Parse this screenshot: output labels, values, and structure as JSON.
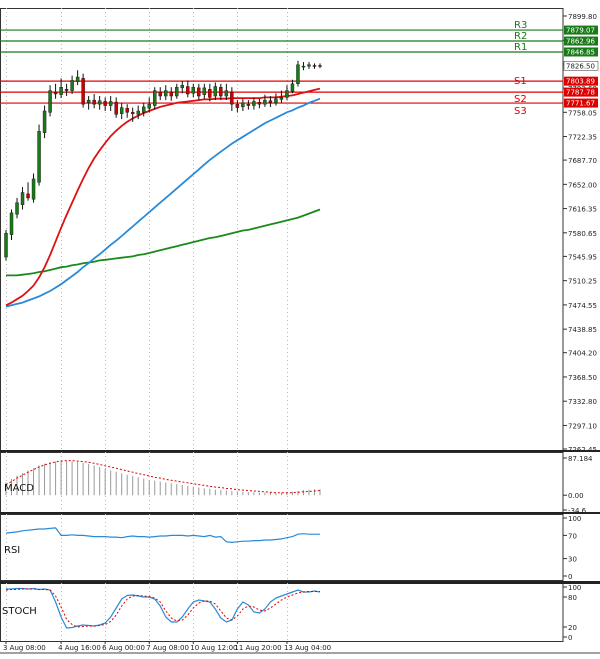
{
  "chart_data": {
    "type": "candlestick",
    "price_ticks": [
      "7899.80",
      "7864.05",
      "7829.15",
      "7793.60",
      "7758.05",
      "7722.35",
      "7687.70",
      "7652.00",
      "7616.35",
      "7580.65",
      "7545.95",
      "7510.25",
      "7474.55",
      "7438.85",
      "7404.20",
      "7368.50",
      "7332.80",
      "7297.10",
      "7262.45"
    ],
    "time_labels": [
      "3 Aug 08:00",
      "4 Aug 16:00",
      "6 Aug 00:00",
      "7 Aug 08:00",
      "10 Aug 12:00",
      "11 Aug 20:00",
      "13 Aug 04:00"
    ],
    "current_price": "7826.50",
    "colors": {
      "up": "#1a7a1a",
      "down": "#cc0000",
      "resistance": "#1a7a1a",
      "support": "#dd0000",
      "sma20": "#dd1111",
      "sma50": "#2a8ad8",
      "sma200": "#1a8a1a",
      "macd_hist": "#999999",
      "macd_signal": "#dd0000",
      "rsi": "#2a8ad8",
      "stoch_k": "#2a8ad8",
      "stoch_d": "#dd0000"
    },
    "levels": [
      {
        "name": "R3",
        "value": 7879.07,
        "label": "7879.07",
        "type": "resistance"
      },
      {
        "name": "R2",
        "value": 7862.96,
        "label": "7862.96",
        "type": "resistance"
      },
      {
        "name": "R1",
        "value": 7846.85,
        "label": "7846.85",
        "type": "resistance"
      },
      {
        "name": "S1",
        "value": 7803.89,
        "label": "7803.89",
        "type": "support"
      },
      {
        "name": "S2",
        "value": 7787.78,
        "label": "7787.78",
        "type": "support"
      },
      {
        "name": "S3",
        "value": 7771.67,
        "label": "7771.67",
        "type": "support"
      }
    ],
    "candles": [
      [
        7545,
        7580,
        7540,
        7585
      ],
      [
        7578,
        7610,
        7570,
        7615
      ],
      [
        7608,
        7625,
        7602,
        7632
      ],
      [
        7622,
        7640,
        7615,
        7648
      ],
      [
        7638,
        7632,
        7628,
        7655
      ],
      [
        7630,
        7660,
        7625,
        7668
      ],
      [
        7655,
        7730,
        7650,
        7740
      ],
      [
        7728,
        7760,
        7720,
        7768
      ],
      [
        7758,
        7790,
        7752,
        7798
      ],
      [
        7788,
        7785,
        7778,
        7800
      ],
      [
        7784,
        7795,
        7779,
        7808
      ],
      [
        7792,
        7790,
        7782,
        7800
      ],
      [
        7790,
        7805,
        7785,
        7812
      ],
      [
        7803,
        7810,
        7798,
        7820
      ],
      [
        7808,
        7770,
        7765,
        7815
      ],
      [
        7772,
        7776,
        7762,
        7782
      ],
      [
        7776,
        7770,
        7764,
        7785
      ],
      [
        7770,
        7775,
        7762,
        7782
      ],
      [
        7774,
        7768,
        7760,
        7780
      ],
      [
        7768,
        7774,
        7760,
        7782
      ],
      [
        7773,
        7755,
        7750,
        7780
      ],
      [
        7756,
        7765,
        7748,
        7772
      ],
      [
        7764,
        7758,
        7750,
        7770
      ],
      [
        7758,
        7756,
        7744,
        7765
      ],
      [
        7755,
        7760,
        7748,
        7768
      ],
      [
        7758,
        7766,
        7752,
        7772
      ],
      [
        7764,
        7770,
        7758,
        7780
      ],
      [
        7768,
        7790,
        7762,
        7795
      ],
      [
        7788,
        7782,
        7776,
        7795
      ],
      [
        7782,
        7790,
        7776,
        7798
      ],
      [
        7788,
        7782,
        7775,
        7795
      ],
      [
        7782,
        7795,
        7778,
        7800
      ],
      [
        7794,
        7798,
        7786,
        7804
      ],
      [
        7796,
        7785,
        7780,
        7805
      ],
      [
        7786,
        7795,
        7780,
        7800
      ],
      [
        7794,
        7782,
        7776,
        7800
      ],
      [
        7784,
        7794,
        7778,
        7800
      ],
      [
        7792,
        7780,
        7774,
        7800
      ],
      [
        7782,
        7796,
        7776,
        7802
      ],
      [
        7795,
        7782,
        7776,
        7800
      ],
      [
        7782,
        7790,
        7776,
        7800
      ],
      [
        7788,
        7770,
        7760,
        7795
      ],
      [
        7770,
        7765,
        7758,
        7776
      ],
      [
        7766,
        7772,
        7760,
        7778
      ],
      [
        7770,
        7768,
        7762,
        7776
      ],
      [
        7768,
        7774,
        7762,
        7780
      ],
      [
        7773,
        7770,
        7764,
        7778
      ],
      [
        7770,
        7776,
        7766,
        7784
      ],
      [
        7775,
        7772,
        7766,
        7782
      ],
      [
        7772,
        7778,
        7768,
        7786
      ],
      [
        7777,
        7780,
        7772,
        7790
      ],
      [
        7780,
        7790,
        7776,
        7798
      ],
      [
        7789,
        7800,
        7786,
        7806
      ],
      [
        7800,
        7828,
        7796,
        7834
      ],
      [
        7826,
        7826,
        7820,
        7832
      ],
      [
        7826,
        7828,
        7822,
        7832
      ],
      [
        7827,
        7826,
        7822,
        7830
      ],
      [
        7826,
        7827,
        7823,
        7830
      ]
    ],
    "sma20": [
      7474,
      7478,
      7483,
      7488,
      7495,
      7503,
      7515,
      7530,
      7548,
      7568,
      7588,
      7607,
      7625,
      7643,
      7660,
      7676,
      7690,
      7702,
      7713,
      7723,
      7731,
      7738,
      7744,
      7749,
      7753,
      7757,
      7760,
      7763,
      7766,
      7768,
      7770,
      7772,
      7773,
      7774,
      7775,
      7776,
      7777,
      7777,
      7778,
      7778,
      7778,
      7779,
      7779,
      7779,
      7779,
      7779,
      7779,
      7780,
      7780,
      7780,
      7781,
      7782,
      7783,
      7785,
      7787,
      7789,
      7791,
      7793
    ],
    "sma50": [
      7472,
      7474,
      7476,
      7478,
      7481,
      7484,
      7487,
      7491,
      7495,
      7500,
      7505,
      7511,
      7517,
      7523,
      7530,
      7536,
      7543,
      7549,
      7556,
      7563,
      7569,
      7576,
      7583,
      7590,
      7597,
      7604,
      7611,
      7618,
      7625,
      7632,
      7639,
      7646,
      7653,
      7660,
      7667,
      7674,
      7681,
      7688,
      7694,
      7700,
      7706,
      7712,
      7717,
      7722,
      7727,
      7732,
      7737,
      7742,
      7746,
      7750,
      7754,
      7758,
      7761,
      7765,
      7768,
      7772,
      7775,
      7778
    ],
    "sma200": [
      7518,
      7518,
      7518,
      7519,
      7520,
      7521,
      7523,
      7524,
      7526,
      7528,
      7530,
      7531,
      7533,
      7534,
      7536,
      7537,
      7538,
      7540,
      7541,
      7542,
      7543,
      7544,
      7545,
      7546,
      7548,
      7549,
      7551,
      7553,
      7555,
      7557,
      7559,
      7561,
      7563,
      7565,
      7567,
      7569,
      7571,
      7573,
      7574,
      7576,
      7578,
      7580,
      7582,
      7584,
      7585,
      7587,
      7589,
      7591,
      7593,
      7595,
      7597,
      7599,
      7601,
      7603,
      7606,
      7609,
      7612,
      7615
    ],
    "macd": {
      "label": "MACD",
      "ticks": [
        "87.184",
        "0.00",
        "-34.6"
      ],
      "ymax": 87.184,
      "ymin": -34.6,
      "hist": [
        30,
        38,
        46,
        52,
        58,
        63,
        70,
        74,
        77,
        79,
        80,
        80,
        79,
        78,
        76,
        73,
        70,
        66,
        62,
        58,
        55,
        51,
        48,
        45,
        42,
        39,
        36,
        34,
        32,
        30,
        28,
        26,
        24,
        22,
        20,
        18,
        16,
        15,
        13,
        12,
        11,
        10,
        9,
        8,
        7,
        7,
        6,
        6,
        6,
        5,
        6,
        7,
        8,
        10,
        12,
        13,
        14,
        14
      ],
      "signal": [
        25,
        32,
        40,
        47,
        54,
        60,
        66,
        71,
        75,
        78,
        80,
        81,
        81,
        80,
        79,
        77,
        75,
        72,
        69,
        66,
        63,
        60,
        57,
        54,
        51,
        48,
        45,
        42,
        40,
        37,
        35,
        33,
        31,
        29,
        27,
        25,
        23,
        21,
        19,
        18,
        16,
        15,
        13,
        12,
        11,
        10,
        9,
        8,
        7,
        6,
        6,
        6,
        6,
        7,
        8,
        9,
        10,
        11
      ]
    },
    "rsi": {
      "label": "RSI",
      "ticks": [
        "100",
        "70",
        "30",
        "0"
      ],
      "values": [
        74,
        75,
        76,
        78,
        79,
        80,
        81,
        81,
        82,
        83,
        70,
        70,
        71,
        70,
        70,
        69,
        68,
        68,
        68,
        67,
        67,
        66,
        68,
        69,
        68,
        68,
        67,
        68,
        69,
        69,
        70,
        70,
        70,
        69,
        70,
        69,
        68,
        70,
        67,
        68,
        59,
        58,
        59,
        60,
        60,
        61,
        61,
        62,
        62,
        63,
        64,
        66,
        68,
        72,
        73,
        72,
        72,
        72
      ]
    },
    "stoch": {
      "label": "STOCH",
      "ticks": [
        "100",
        "80",
        "20",
        "0"
      ],
      "k": [
        96,
        96,
        97,
        97,
        96,
        97,
        95,
        96,
        94,
        70,
        40,
        18,
        19,
        22,
        24,
        23,
        22,
        24,
        28,
        40,
        58,
        76,
        83,
        84,
        82,
        80,
        80,
        76,
        62,
        40,
        30,
        30,
        40,
        56,
        70,
        74,
        72,
        70,
        56,
        38,
        30,
        34,
        56,
        70,
        64,
        50,
        48,
        56,
        70,
        78,
        82,
        86,
        90,
        94,
        90,
        90,
        92,
        90
      ],
      "d": [
        94,
        95,
        95,
        96,
        96,
        96,
        95,
        95,
        94,
        82,
        60,
        35,
        25,
        20,
        21,
        22,
        22,
        23,
        25,
        31,
        44,
        62,
        76,
        82,
        83,
        82,
        81,
        78,
        70,
        52,
        38,
        32,
        34,
        44,
        58,
        68,
        72,
        72,
        66,
        52,
        38,
        34,
        42,
        56,
        62,
        60,
        54,
        52,
        58,
        66,
        74,
        80,
        84,
        88,
        90,
        91,
        91,
        91
      ]
    }
  }
}
